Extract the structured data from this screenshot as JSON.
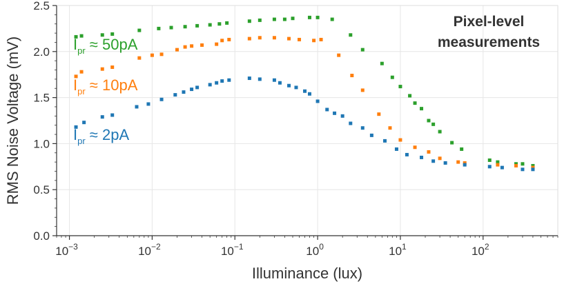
{
  "chart_data": {
    "type": "scatter",
    "xscale": "log",
    "xlim": [
      0.0007,
      800
    ],
    "ylim": [
      0,
      2.5
    ],
    "xlabel": "Illuminance (lux)",
    "ylabel": "RMS Noise Voltage (mV)",
    "grid": true,
    "x_ticks": [
      {
        "value": 0.001,
        "base": "10",
        "exp": "−3"
      },
      {
        "value": 0.01,
        "base": "10",
        "exp": "−2"
      },
      {
        "value": 0.1,
        "base": "10",
        "exp": "−1"
      },
      {
        "value": 1,
        "base": "10",
        "exp": "0"
      },
      {
        "value": 10,
        "base": "10",
        "exp": "1"
      },
      {
        "value": 100,
        "base": "10",
        "exp": "2"
      }
    ],
    "y_ticks": [
      "0.0",
      "0.5",
      "1.0",
      "1.5",
      "2.0",
      "2.5"
    ],
    "annotation": [
      "Pixel-level",
      "measurements"
    ],
    "series": [
      {
        "name_main": "I",
        "name_sub": "pr",
        "name_rest": " ≈ 50pA",
        "color": "#2ca02c",
        "points": [
          [
            0.0012,
            2.16
          ],
          [
            0.0014,
            2.17
          ],
          [
            0.0025,
            2.18
          ],
          [
            0.0033,
            2.19
          ],
          [
            0.007,
            2.23
          ],
          [
            0.012,
            2.25
          ],
          [
            0.017,
            2.26
          ],
          [
            0.025,
            2.27
          ],
          [
            0.035,
            2.28
          ],
          [
            0.05,
            2.29
          ],
          [
            0.065,
            2.3
          ],
          [
            0.08,
            2.31
          ],
          [
            0.15,
            2.33
          ],
          [
            0.2,
            2.34
          ],
          [
            0.3,
            2.35
          ],
          [
            0.4,
            2.35
          ],
          [
            0.5,
            2.36
          ],
          [
            0.8,
            2.37
          ],
          [
            1.0,
            2.37
          ],
          [
            1.5,
            2.35
          ],
          [
            2.5,
            2.18
          ],
          [
            3.5,
            2.02
          ],
          [
            6,
            1.87
          ],
          [
            8,
            1.72
          ],
          [
            10,
            1.62
          ],
          [
            13,
            1.52
          ],
          [
            15,
            1.44
          ],
          [
            18,
            1.38
          ],
          [
            22,
            1.25
          ],
          [
            25,
            1.21
          ],
          [
            30,
            1.13
          ],
          [
            42,
            1.01
          ],
          [
            55,
            0.94
          ],
          [
            120,
            0.82
          ],
          [
            150,
            0.8
          ],
          [
            250,
            0.78
          ],
          [
            300,
            0.78
          ],
          [
            400,
            0.76
          ]
        ]
      },
      {
        "name_main": "I",
        "name_sub": "pr",
        "name_rest": " ≈ 10pA",
        "color": "#ff7f0e",
        "points": [
          [
            0.0012,
            1.73
          ],
          [
            0.0014,
            1.78
          ],
          [
            0.0025,
            1.81
          ],
          [
            0.0033,
            1.83
          ],
          [
            0.007,
            1.93
          ],
          [
            0.01,
            1.96
          ],
          [
            0.013,
            1.97
          ],
          [
            0.02,
            2.02
          ],
          [
            0.025,
            2.05
          ],
          [
            0.03,
            2.06
          ],
          [
            0.04,
            2.07
          ],
          [
            0.06,
            2.08
          ],
          [
            0.07,
            2.12
          ],
          [
            0.085,
            2.13
          ],
          [
            0.15,
            2.14
          ],
          [
            0.2,
            2.15
          ],
          [
            0.3,
            2.15
          ],
          [
            0.45,
            2.14
          ],
          [
            0.6,
            2.13
          ],
          [
            0.9,
            2.12
          ],
          [
            1.1,
            2.13
          ],
          [
            1.8,
            1.96
          ],
          [
            2.6,
            1.74
          ],
          [
            3.5,
            1.58
          ],
          [
            5.5,
            1.32
          ],
          [
            7.5,
            1.17
          ],
          [
            10,
            1.04
          ],
          [
            15,
            0.96
          ],
          [
            22,
            0.91
          ],
          [
            30,
            0.84
          ],
          [
            50,
            0.8
          ],
          [
            60,
            0.79
          ],
          [
            150,
            0.77
          ],
          [
            250,
            0.76
          ],
          [
            400,
            0.74
          ]
        ]
      },
      {
        "name_main": "I",
        "name_sub": "pr",
        "name_rest": " ≈ 2pA",
        "color": "#1f77b4",
        "points": [
          [
            0.0012,
            1.18
          ],
          [
            0.0015,
            1.23
          ],
          [
            0.0025,
            1.29
          ],
          [
            0.0033,
            1.31
          ],
          [
            0.0065,
            1.4
          ],
          [
            0.009,
            1.43
          ],
          [
            0.013,
            1.48
          ],
          [
            0.019,
            1.53
          ],
          [
            0.024,
            1.56
          ],
          [
            0.03,
            1.59
          ],
          [
            0.035,
            1.61
          ],
          [
            0.05,
            1.64
          ],
          [
            0.06,
            1.66
          ],
          [
            0.07,
            1.68
          ],
          [
            0.085,
            1.69
          ],
          [
            0.15,
            1.71
          ],
          [
            0.2,
            1.7
          ],
          [
            0.3,
            1.69
          ],
          [
            0.35,
            1.66
          ],
          [
            0.45,
            1.63
          ],
          [
            0.55,
            1.61
          ],
          [
            0.7,
            1.57
          ],
          [
            0.8,
            1.54
          ],
          [
            1.0,
            1.46
          ],
          [
            1.3,
            1.37
          ],
          [
            1.6,
            1.33
          ],
          [
            2.0,
            1.3
          ],
          [
            2.5,
            1.22
          ],
          [
            3.5,
            1.17
          ],
          [
            4.5,
            1.09
          ],
          [
            6.5,
            1.03
          ],
          [
            9,
            0.94
          ],
          [
            12,
            0.88
          ],
          [
            18,
            0.85
          ],
          [
            25,
            0.81
          ],
          [
            35,
            0.79
          ],
          [
            60,
            0.77
          ],
          [
            120,
            0.75
          ],
          [
            170,
            0.74
          ],
          [
            300,
            0.72
          ],
          [
            400,
            0.72
          ]
        ]
      }
    ]
  }
}
